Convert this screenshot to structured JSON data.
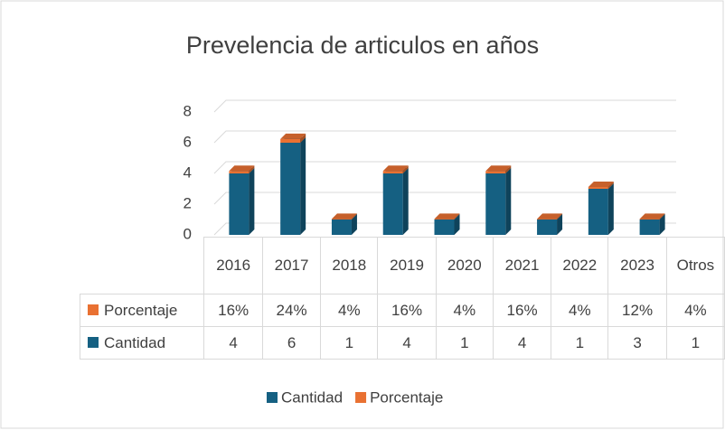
{
  "chart_data": {
    "type": "bar3d_stacked",
    "title": "Prevelencia de articulos en años",
    "categories": [
      "2016",
      "2017",
      "2018",
      "2019",
      "2020",
      "2021",
      "2022",
      "2023",
      "Otros"
    ],
    "series": [
      {
        "name": "Cantidad",
        "color": "#156082",
        "values": [
          4,
          6,
          1,
          4,
          1,
          4,
          1,
          3,
          1
        ]
      },
      {
        "name": "Porcentaje",
        "color": "#e97132",
        "values": [
          0.16,
          0.24,
          0.04,
          0.16,
          0.04,
          0.16,
          0.04,
          0.12,
          0.04
        ],
        "value_labels": [
          "16%",
          "24%",
          "4%",
          "16%",
          "4%",
          "16%",
          "4%",
          "12%",
          "4%"
        ]
      }
    ],
    "ylim": [
      0,
      8
    ],
    "yticks": [
      0,
      2,
      4,
      6,
      8
    ],
    "grid": true,
    "data_table": true,
    "legend": "bottom"
  }
}
